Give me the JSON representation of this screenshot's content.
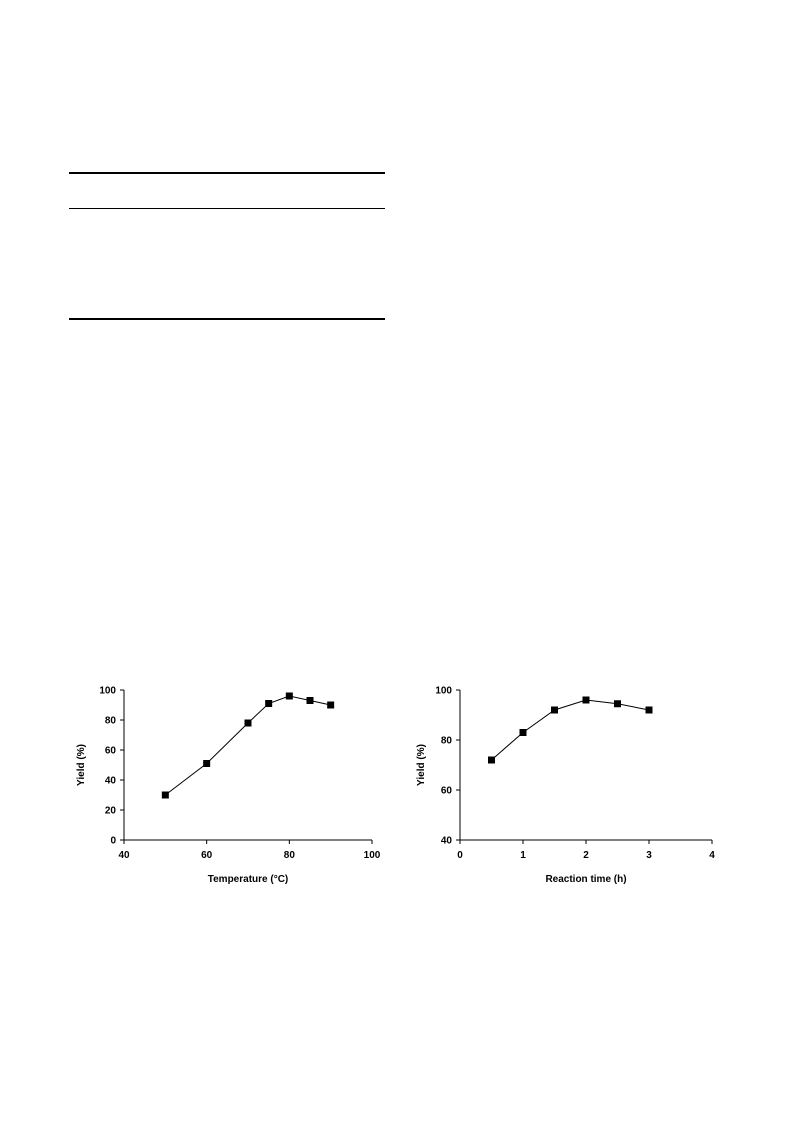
{
  "table": {},
  "chart_data": [
    {
      "type": "line",
      "xlabel": "Temperature (°C)",
      "ylabel": "Yield (%)",
      "xlim": [
        40,
        100
      ],
      "ylim": [
        0,
        100
      ],
      "xticks": [
        40,
        60,
        80,
        100
      ],
      "yticks": [
        0,
        20,
        40,
        60,
        80,
        100
      ],
      "marker": "square",
      "grid": false,
      "series": [
        {
          "x": [
            50,
            60,
            70,
            75,
            80,
            85,
            90
          ],
          "y": [
            30,
            51,
            78,
            91,
            96,
            93,
            90
          ]
        }
      ]
    },
    {
      "type": "line",
      "xlabel": "Reaction time (h)",
      "ylabel": "Yield  (%)",
      "xlim": [
        0,
        4
      ],
      "ylim": [
        40,
        100
      ],
      "xticks": [
        0,
        1,
        2,
        3,
        4
      ],
      "yticks": [
        40,
        60,
        80,
        100
      ],
      "marker": "square",
      "grid": false,
      "series": [
        {
          "x": [
            0.5,
            1,
            1.5,
            2,
            2.5,
            3
          ],
          "y": [
            72,
            83,
            92,
            96,
            94.5,
            92
          ]
        }
      ]
    }
  ]
}
